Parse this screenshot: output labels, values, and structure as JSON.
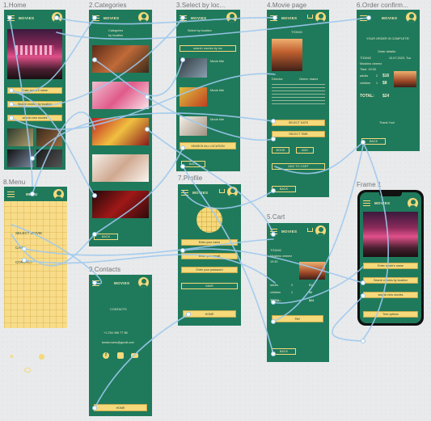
{
  "canvas": {
    "frame_labels": [
      "1.Home",
      "2.Categories",
      "3.Select by loc...",
      "4.Movie page",
      "6.Order confirm...",
      "8.Menu",
      "7.Profile",
      "5.Cart",
      "9.Contacts",
      "Frame 1"
    ],
    "colors": {
      "accent_green": "#1f7a5c",
      "accent_yellow": "#f5d97a",
      "wire_blue": "#9ec9ef",
      "menu_bg": "#f8dc8a",
      "canvas_bg": "#e9eaeb"
    }
  },
  "brand": "MOVIES",
  "home": {
    "search_placeholder": "Enter movie's name",
    "search_location_label": "Search movies by location",
    "search_new_label": "search new movies"
  },
  "categories": {
    "title": "Categories",
    "subtitle": "by location",
    "back_label": "BACK"
  },
  "select_location": {
    "title": "Select by location",
    "search_label": "search movies by loc",
    "item_labels": [
      "Movie title",
      "Movie title",
      "Movie title"
    ],
    "search_all_label": "SEARCH ALL LOCATION",
    "back_label": "BACK"
  },
  "movie_page": {
    "title": "TITANIC",
    "meta_left": "Director:",
    "meta_right": "Genre: drama",
    "buttons": [
      "SELECT DATE",
      "SELECT TIME"
    ],
    "small_buttons": [
      "BOOK",
      "ADD"
    ],
    "add_to_cart_label": "ADD TO CART",
    "back_label": "BACK"
  },
  "order_confirm": {
    "confirmation_text": "YOUR ORDER IS COMPLETE!",
    "details_title": "Order details:",
    "movie": "TITANIC",
    "date": "10.07.2023, Tue",
    "cinema": "Moskino cinema",
    "time": "Time: 19:30",
    "adults_label": "adults",
    "adults_qty": "2",
    "adults_price": "$16",
    "children_label": "children",
    "children_qty": "1",
    "children_price": "$8",
    "total_label": "TOTAL:",
    "total_value": "$24",
    "thanks": "Thank You!",
    "back_label": "BACK"
  },
  "menu": {
    "title": "MENU",
    "items": [
      "SELECT MOVIE",
      "CART",
      "CONTACT"
    ]
  },
  "profile": {
    "fields": [
      "Enter your name",
      "Enter your email",
      "Enter your password"
    ],
    "save_label": "SAVE",
    "home_label": "HOME"
  },
  "cart": {
    "movie": "TITANIC",
    "cinema": "Moskino cinema",
    "time": "19:30",
    "rows": [
      {
        "label": "adults",
        "qty": "2",
        "price": "$16"
      },
      {
        "label": "children",
        "qty": "1",
        "price": "$8"
      }
    ],
    "total_label": "TOTAL:",
    "total_value": "$24",
    "pay_label": "PAY",
    "back_label": "BACK"
  },
  "contacts": {
    "title": "CONTACTS",
    "phone": "+1 234 456 77 88",
    "email": "bestmovies@gmail.com",
    "home_label": "HOME"
  },
  "phone_preview": {
    "search_placeholder": "Enter movie's name",
    "buttons": [
      "Search movies by location",
      "search new movies",
      "Tree options"
    ]
  }
}
